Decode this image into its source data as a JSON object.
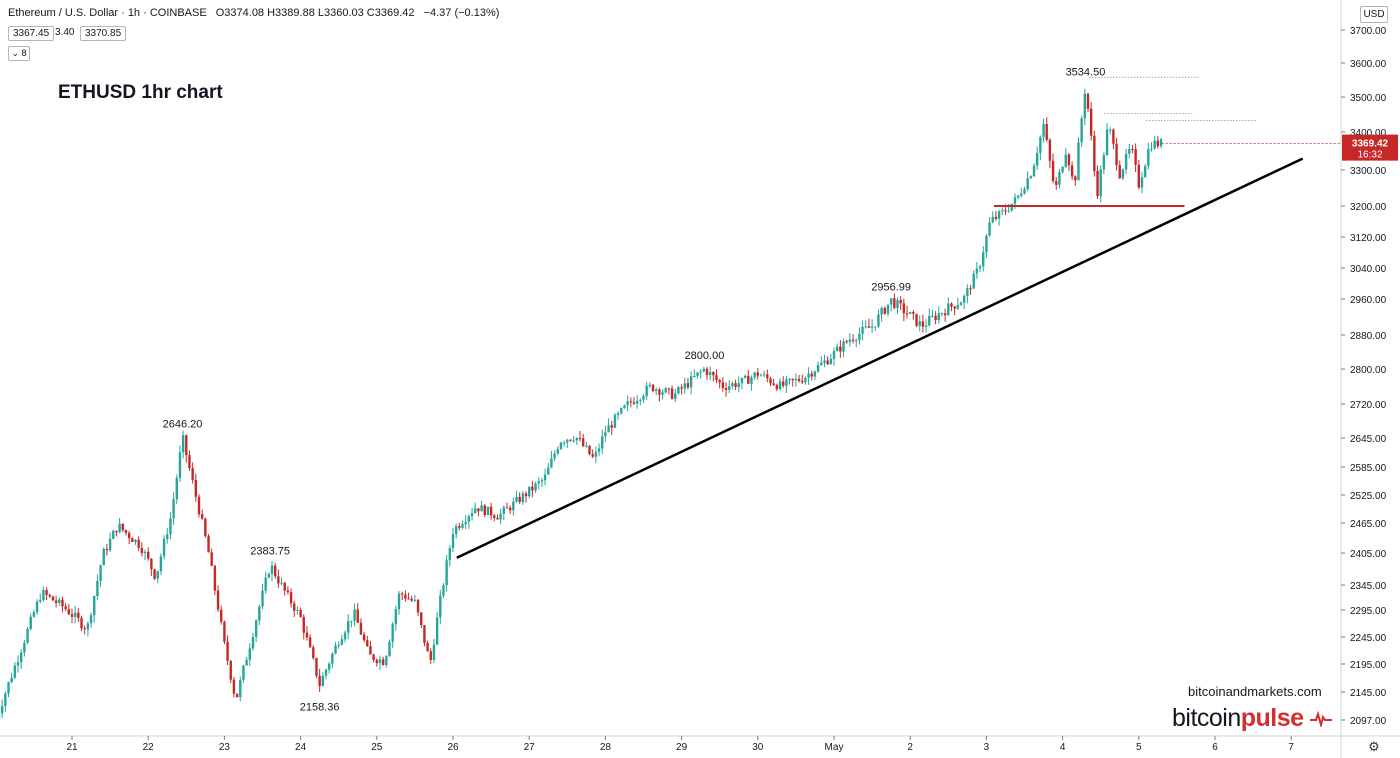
{
  "header": {
    "symbol": "Ethereum / U.S. Dollar · 1h · COINBASE",
    "ohlc": "O3374.08 H3389.88 L3360.03 C3369.42",
    "change": "−4.37 (−0.13%)",
    "bid": "3367.45",
    "spread": "3.40",
    "ask": "3370.85",
    "indicator_toggle": "8"
  },
  "currency_badge": "USD",
  "overlay_title": "ETHUSD 1hr chart",
  "watermark": {
    "url": "bitcoinandmarkets.com",
    "logo_text": "bitcoin",
    "logo_accent": "pulse"
  },
  "colors": {
    "up": "#26a69a",
    "down": "#c62828",
    "trend": "#000000",
    "support": "#c62828",
    "last_price": "#c62828"
  },
  "chart_data": {
    "type": "candlestick",
    "title": "ETHUSD 1hr chart",
    "price_ticks": [
      "3700.00",
      "3600.00",
      "3500.00",
      "3400.00",
      "3300.00",
      "3200.00",
      "3120.00",
      "3040.00",
      "2960.00",
      "2880.00",
      "2800.00",
      "2720.00",
      "2645.00",
      "2585.00",
      "2525.00",
      "2465.00",
      "2405.00",
      "2345.00",
      "2295.00",
      "2245.00",
      "2195.00",
      "2145.00",
      "2097.00"
    ],
    "x_ticks": [
      "21",
      "22",
      "23",
      "24",
      "25",
      "26",
      "27",
      "28",
      "29",
      "30",
      "May",
      "2",
      "3",
      "4",
      "5",
      "6",
      "7"
    ],
    "x_range_days": [
      20.1,
      7.35
    ],
    "grid": false,
    "last_price": {
      "value": 3369.42,
      "label": "3369.42",
      "countdown": "16:32"
    },
    "annotations": [
      {
        "label": "2646.20",
        "day": 22.45,
        "price": 2646.2
      },
      {
        "label": "2383.75",
        "day": 23.6,
        "price": 2383.75
      },
      {
        "label": "2158.36",
        "day": 24.25,
        "price": 2158.36
      },
      {
        "label": "2800.00",
        "day": 29.3,
        "price": 2800.0
      },
      {
        "label": "2956.99",
        "day": 31.75,
        "price": 2956.99
      },
      {
        "label": "3534.50",
        "day": 34.3,
        "price": 3534.5
      }
    ],
    "key_points": [
      [
        20.0,
        2097
      ],
      [
        20.3,
        2210
      ],
      [
        20.6,
        2330
      ],
      [
        20.9,
        2300
      ],
      [
        21.2,
        2260
      ],
      [
        21.4,
        2400
      ],
      [
        21.6,
        2460
      ],
      [
        21.9,
        2420
      ],
      [
        22.1,
        2360
      ],
      [
        22.3,
        2480
      ],
      [
        22.45,
        2646.2
      ],
      [
        22.6,
        2540
      ],
      [
        22.8,
        2400
      ],
      [
        23.0,
        2230
      ],
      [
        23.15,
        2130
      ],
      [
        23.35,
        2240
      ],
      [
        23.6,
        2383.75
      ],
      [
        23.8,
        2330
      ],
      [
        24.0,
        2280
      ],
      [
        24.25,
        2158.36
      ],
      [
        24.5,
        2240
      ],
      [
        24.7,
        2290
      ],
      [
        24.9,
        2210
      ],
      [
        25.1,
        2200
      ],
      [
        25.3,
        2330
      ],
      [
        25.5,
        2310
      ],
      [
        25.7,
        2195
      ],
      [
        25.85,
        2330
      ],
      [
        26.0,
        2450
      ],
      [
        26.3,
        2500
      ],
      [
        26.6,
        2480
      ],
      [
        26.9,
        2520
      ],
      [
        27.2,
        2560
      ],
      [
        27.4,
        2640
      ],
      [
        27.6,
        2650
      ],
      [
        27.85,
        2600
      ],
      [
        28.0,
        2660
      ],
      [
        28.3,
        2720
      ],
      [
        28.6,
        2760
      ],
      [
        28.9,
        2740
      ],
      [
        29.1,
        2770
      ],
      [
        29.3,
        2800
      ],
      [
        29.55,
        2760
      ],
      [
        29.8,
        2770
      ],
      [
        30.0,
        2790
      ],
      [
        30.3,
        2760
      ],
      [
        30.6,
        2780
      ],
      [
        30.9,
        2820
      ],
      [
        31.2,
        2870
      ],
      [
        31.5,
        2900
      ],
      [
        31.75,
        2956.99
      ],
      [
        31.95,
        2930
      ],
      [
        32.15,
        2900
      ],
      [
        32.4,
        2930
      ],
      [
        32.7,
        2960
      ],
      [
        32.9,
        3040
      ],
      [
        33.05,
        3160
      ],
      [
        33.2,
        3180
      ],
      [
        33.4,
        3220
      ],
      [
        33.6,
        3300
      ],
      [
        33.75,
        3420
      ],
      [
        33.9,
        3240
      ],
      [
        34.05,
        3360
      ],
      [
        34.15,
        3250
      ],
      [
        34.3,
        3534.5
      ],
      [
        34.45,
        3230
      ],
      [
        34.6,
        3420
      ],
      [
        34.75,
        3290
      ],
      [
        34.9,
        3360
      ],
      [
        35.0,
        3260
      ],
      [
        35.15,
        3370
      ],
      [
        35.3,
        3369.42
      ]
    ],
    "trend_line": {
      "start": [
        26.05,
        2396
      ],
      "end": [
        37.15,
        3330
      ]
    },
    "support_line": {
      "price": 3200,
      "from_day": 33.1,
      "to_day": 35.6
    },
    "resistance_lines": [
      {
        "price": 3534.5,
        "from_day": 34.35,
        "to_day": 35.8
      },
      {
        "price": 3430,
        "from_day": 34.55,
        "to_day": 35.7
      },
      {
        "price": 3410,
        "from_day": 35.1,
        "to_day": 36.55
      }
    ]
  }
}
